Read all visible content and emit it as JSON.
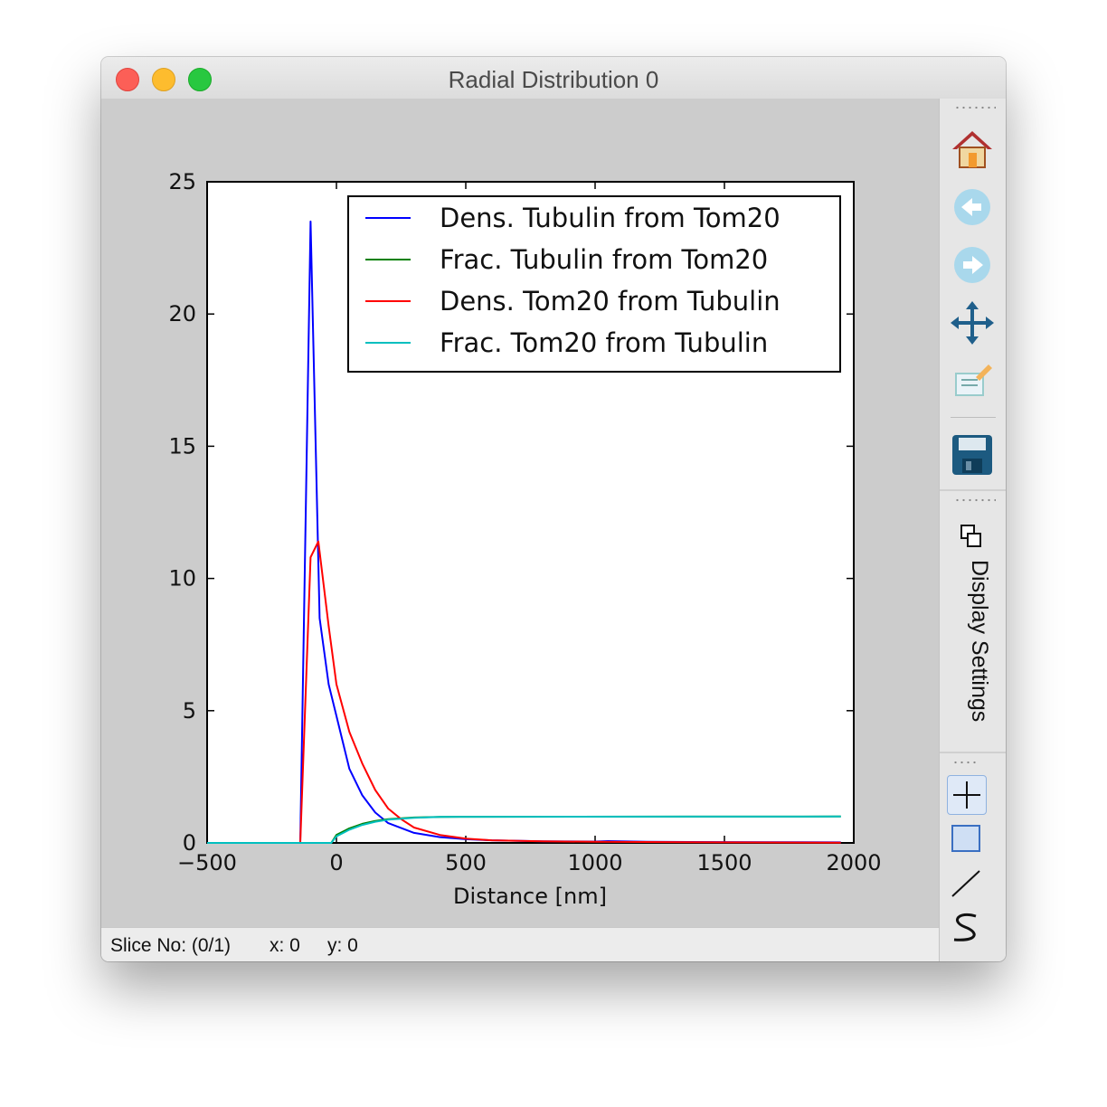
{
  "window": {
    "title": "Radial Distribution 0"
  },
  "status": {
    "slice": "Slice No: (0/1)",
    "x": "x: 0",
    "y": "y: 0"
  },
  "toolbar": {
    "icons": [
      "home-icon",
      "back-arrow-icon",
      "forward-arrow-icon",
      "pan-move-icon",
      "edit-config-icon",
      "save-disk-icon"
    ],
    "display_settings_label": "Display Settings",
    "tools": [
      "crosshair-tool-icon",
      "rectangle-select-tool-icon",
      "line-tool-icon",
      "spline-tool-icon"
    ]
  },
  "chart_data": {
    "type": "line",
    "title": "",
    "xlabel": "Distance [nm]",
    "ylabel": "",
    "xlim": [
      -500,
      2000
    ],
    "ylim": [
      0,
      25
    ],
    "xticks": [
      -500,
      0,
      500,
      1000,
      1500,
      2000
    ],
    "xtick_labels": [
      "−500",
      "0",
      "500",
      "1000",
      "1500",
      "2000"
    ],
    "yticks": [
      0,
      5,
      10,
      15,
      20,
      25
    ],
    "ytick_labels": [
      "0",
      "5",
      "10",
      "15",
      "20",
      "25"
    ],
    "legend_position": "top-right",
    "grid": false,
    "series": [
      {
        "name": "Dens. Tubulin from Tom20",
        "color": "#0000ff",
        "points": [
          [
            -500,
            0
          ],
          [
            -140,
            0
          ],
          [
            -100,
            23.5
          ],
          [
            -65,
            8.5
          ],
          [
            -30,
            6
          ],
          [
            0,
            4.8
          ],
          [
            50,
            2.8
          ],
          [
            100,
            1.8
          ],
          [
            150,
            1.15
          ],
          [
            200,
            0.75
          ],
          [
            300,
            0.38
          ],
          [
            400,
            0.22
          ],
          [
            500,
            0.14
          ],
          [
            600,
            0.1
          ],
          [
            800,
            0.06
          ],
          [
            1000,
            0.05
          ],
          [
            1050,
            0.07
          ],
          [
            1200,
            0.04
          ],
          [
            1500,
            0.03
          ],
          [
            1950,
            0.02
          ]
        ]
      },
      {
        "name": "Frac. Tubulin from Tom20",
        "color": "#008000",
        "points": [
          [
            -500,
            0
          ],
          [
            -20,
            0
          ],
          [
            0,
            0.3
          ],
          [
            50,
            0.55
          ],
          [
            100,
            0.72
          ],
          [
            150,
            0.83
          ],
          [
            200,
            0.9
          ],
          [
            300,
            0.96
          ],
          [
            400,
            0.98
          ],
          [
            500,
            0.99
          ],
          [
            1950,
            1.0
          ]
        ]
      },
      {
        "name": "Dens. Tom20 from Tubulin",
        "color": "#ff0000",
        "points": [
          [
            -500,
            0
          ],
          [
            -140,
            0
          ],
          [
            -100,
            10.8
          ],
          [
            -70,
            11.4
          ],
          [
            -30,
            8.2
          ],
          [
            0,
            6
          ],
          [
            50,
            4.2
          ],
          [
            100,
            3.0
          ],
          [
            150,
            2.0
          ],
          [
            200,
            1.3
          ],
          [
            250,
            0.9
          ],
          [
            300,
            0.58
          ],
          [
            400,
            0.3
          ],
          [
            500,
            0.16
          ],
          [
            600,
            0.1
          ],
          [
            800,
            0.06
          ],
          [
            1000,
            0.04
          ],
          [
            1500,
            0.02
          ],
          [
            1950,
            0.01
          ]
        ]
      },
      {
        "name": "Frac. Tom20 from Tubulin",
        "color": "#00bfbf",
        "points": [
          [
            -500,
            0
          ],
          [
            -20,
            0
          ],
          [
            0,
            0.25
          ],
          [
            50,
            0.5
          ],
          [
            100,
            0.68
          ],
          [
            150,
            0.8
          ],
          [
            200,
            0.88
          ],
          [
            300,
            0.95
          ],
          [
            400,
            0.98
          ],
          [
            500,
            0.99
          ],
          [
            1950,
            1.0
          ]
        ]
      }
    ]
  }
}
